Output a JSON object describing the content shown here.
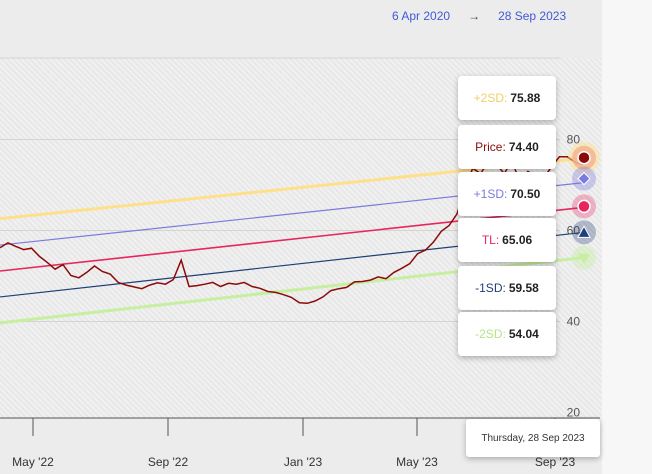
{
  "header": {
    "start_date": "6 Apr 2020",
    "arrow": "→",
    "end_date": "28 Sep 2023"
  },
  "chart_data": {
    "type": "line",
    "title": "",
    "xlabel": "",
    "ylabel": "",
    "x_ticks": [
      "May '22",
      "Sep '22",
      "Jan '23",
      "May '23",
      "Sep '23"
    ],
    "y_ticks": [
      20,
      40,
      60,
      80
    ],
    "ylim": [
      20,
      82
    ],
    "grid": true,
    "bands": [
      {
        "label": "+2SD",
        "color": "#ffe08a",
        "start": 62.6,
        "end": 75.88
      },
      {
        "label": "+1SD",
        "color": "#7b7bdf",
        "start": 56.8,
        "end": 70.5
      },
      {
        "label": "TL",
        "color": "#e8265e",
        "start": 51.1,
        "end": 65.06
      },
      {
        "label": "-1SD",
        "color": "#1f3f78",
        "start": 45.4,
        "end": 59.58
      },
      {
        "label": "-2SD",
        "color": "#c6efa0",
        "start": 39.7,
        "end": 54.04
      }
    ],
    "price_color": "#8b0a0a",
    "price_series": [
      56.2,
      57.3,
      56.5,
      55.8,
      56.1,
      54.3,
      53.0,
      51.5,
      52.5,
      50.1,
      49.6,
      50.8,
      52.2,
      51.0,
      50.4,
      48.6,
      48.0,
      47.6,
      47.2,
      48.0,
      48.5,
      48.2,
      49.2,
      53.5,
      47.7,
      47.9,
      48.2,
      48.6,
      47.7,
      48.4,
      48.2,
      48.6,
      47.7,
      47.3,
      46.6,
      46.4,
      45.9,
      45.3,
      44.1,
      44.0,
      44.5,
      45.4,
      46.8,
      47.2,
      47.5,
      48.7,
      48.8,
      49.1,
      49.8,
      49.4,
      50.8,
      51.7,
      52.7,
      54.9,
      55.7,
      57.4,
      59.8,
      61.1,
      63.6,
      69.0,
      73.7,
      72.5,
      75.2,
      74.6,
      72.5,
      75.3,
      70.5,
      73.0,
      72.0,
      71.5,
      74.0,
      76.2,
      76.2,
      75.0,
      74.4
    ],
    "tooltips": [
      {
        "label": "+2SD",
        "value": "75.88"
      },
      {
        "label": "Price",
        "value": "74.40"
      },
      {
        "label": "+1SD",
        "value": "70.50"
      },
      {
        "label": "TL",
        "value": "65.06"
      },
      {
        "label": "-1SD",
        "value": "59.58"
      },
      {
        "label": "-2SD",
        "value": "54.04"
      }
    ],
    "hover_date": "Thursday, 28 Sep 2023"
  }
}
